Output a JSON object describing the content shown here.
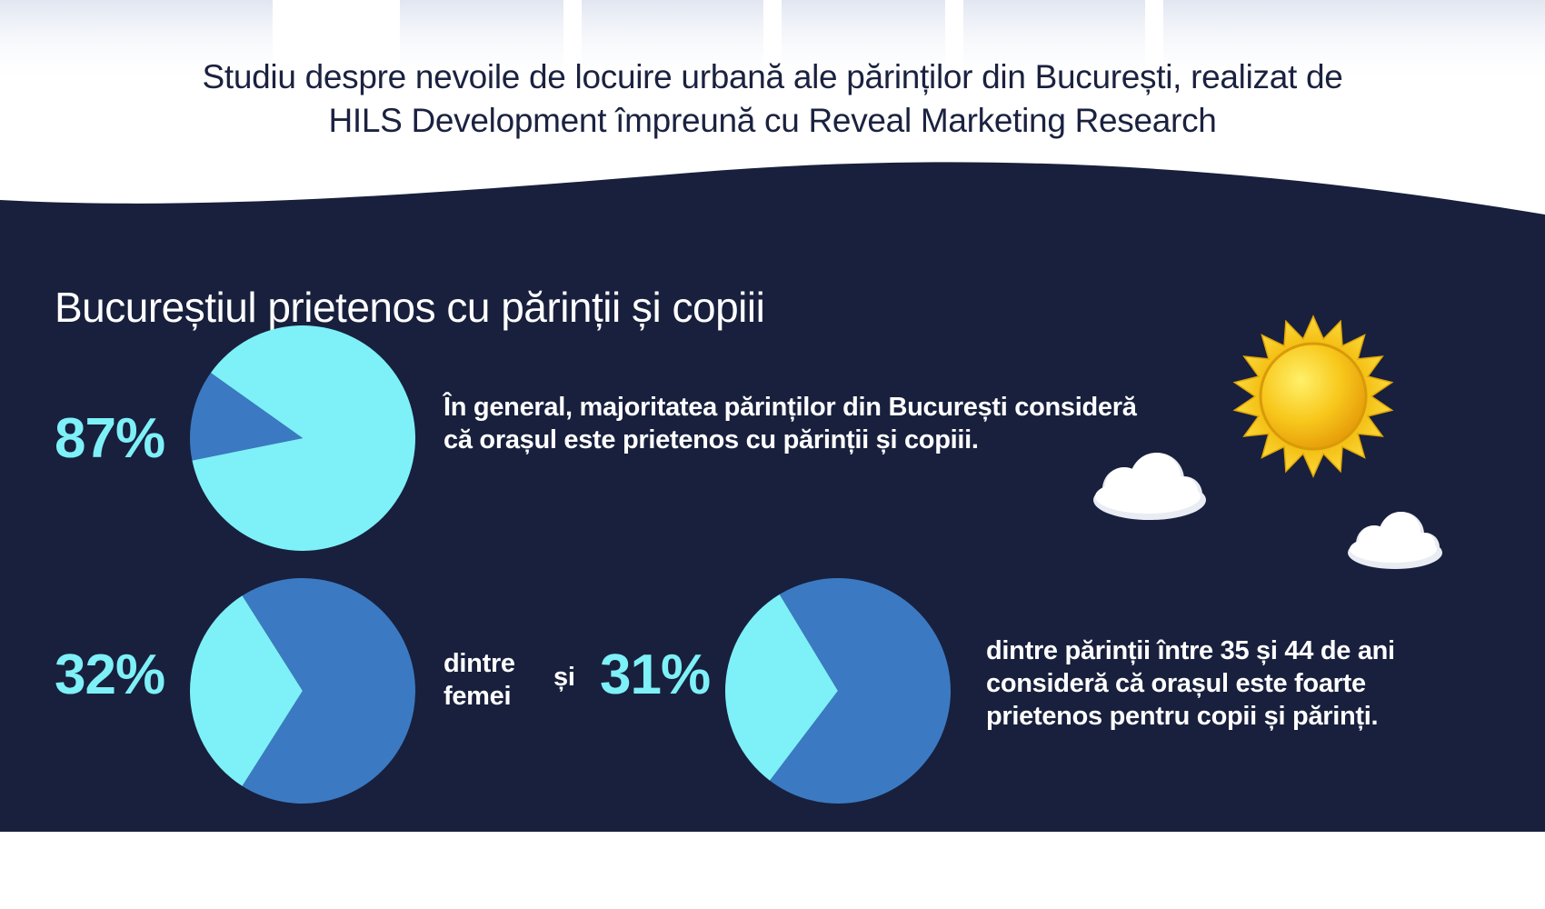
{
  "header": {
    "title_lines": [
      "Studiu despre nevoile de locuire urbană ale părinților din București, realizat de",
      "HILS Development împreună cu Reveal Marketing Research"
    ]
  },
  "section": {
    "title": "Bucureștiul prietenos cu părinții și copiii"
  },
  "stats": {
    "general_pct": "87%",
    "general_text_lines": [
      "În general, majoritatea părinților din București consideră",
      "că orașul este prietenos cu părinții și copiii."
    ],
    "women_pct": "32%",
    "women_label_lines": [
      "dintre",
      "femei"
    ],
    "connector": "și",
    "age_pct": "31%",
    "age_text_lines": [
      "dintre părinții între 35 și 44 de ani",
      "consideră că orașul este foarte",
      "prietenos pentru copii și părinți."
    ]
  },
  "colors": {
    "dark_panel": "#18203d",
    "pie_light": "#7ef0f8",
    "pie_dark": "#3b7ac2",
    "header_text": "#1b2240",
    "white_text": "#ffffff"
  },
  "chart_data": [
    {
      "type": "pie",
      "categories": [
        "",
        ""
      ],
      "values": [
        87,
        13
      ]
    },
    {
      "type": "pie",
      "categories": [
        "",
        ""
      ],
      "values": [
        32,
        68
      ]
    },
    {
      "type": "pie",
      "categories": [
        "",
        ""
      ],
      "values": [
        31,
        69
      ]
    }
  ]
}
